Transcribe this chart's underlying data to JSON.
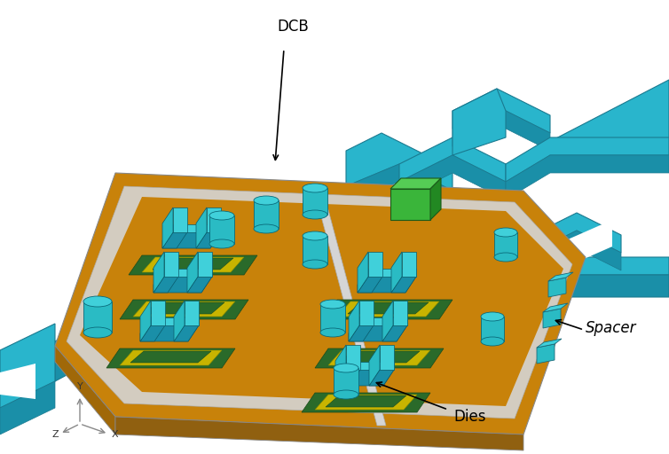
{
  "background_color": "#ffffff",
  "dcb_label": "DCB",
  "dies_label": "Dies",
  "spacer_label": "Spacer",
  "figsize": [
    7.54,
    5.12
  ],
  "dpi": 100,
  "colors": {
    "baseplate": "#29b5cc",
    "baseplate_dark": "#1a8fa8",
    "baseplate_light": "#4fd0e8",
    "substrate_top": "#c8820a",
    "substrate_side": "#a06808",
    "substrate_frame": "#d8d8d8",
    "die_teal": "#2abbc4",
    "die_teal_top": "#40d0da",
    "die_teal_dark": "#1a8fa8",
    "die_green": "#3ab53a",
    "die_green_top": "#55cc55",
    "pcb_green": "#2a6a2a",
    "pcb_yellow": "#c8b400",
    "axes_color": "#888888",
    "label_color": "#000000",
    "edge_dark": "#1a6a7a"
  },
  "annotation_fontsize": 11,
  "axes_fontsize": 8
}
